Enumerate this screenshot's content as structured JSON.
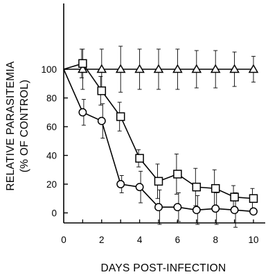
{
  "chart_data": {
    "type": "line",
    "xlabel": "DAYS POST-INFECTION",
    "ylabel_lines": [
      "RELATIVE PARASITEMIA",
      "(% OF CONTROL)"
    ],
    "xlim": [
      0,
      10.5
    ],
    "ylim": [
      -5,
      115
    ],
    "x_ticks": [
      0,
      2,
      4,
      6,
      8,
      10
    ],
    "y_ticks": [
      0,
      20,
      40,
      60,
      80,
      100
    ],
    "grid": false,
    "series": [
      {
        "marker": "triangle",
        "x": [
          0,
          1,
          2,
          3,
          4,
          5,
          6,
          7,
          8,
          9,
          10
        ],
        "y": [
          100,
          100,
          100,
          100,
          100,
          100,
          100,
          100,
          100,
          100,
          100
        ],
        "err_up": [
          0,
          14,
          14,
          16,
          14,
          14,
          14,
          13,
          13,
          12,
          9
        ],
        "err_down": [
          0,
          14,
          14,
          16,
          14,
          14,
          14,
          13,
          13,
          12,
          9
        ]
      },
      {
        "marker": "square",
        "x": [
          0,
          1,
          2,
          3,
          4,
          5,
          6,
          7,
          8,
          9,
          10
        ],
        "y": [
          100,
          104,
          85,
          67,
          38,
          22,
          27,
          18,
          17,
          11,
          10
        ],
        "err_up": [
          0,
          10,
          10,
          10,
          6,
          12,
          14,
          13,
          13,
          8,
          7
        ],
        "err_down": [
          0,
          10,
          10,
          10,
          6,
          12,
          14,
          13,
          13,
          8,
          7
        ]
      },
      {
        "marker": "circle",
        "x": [
          0,
          1,
          2,
          3,
          4,
          5,
          6,
          7,
          8,
          9,
          10
        ],
        "y": [
          100,
          70,
          64,
          20,
          18,
          4,
          4,
          2,
          3,
          2,
          1
        ],
        "err_up": [
          0,
          9,
          12,
          6,
          11,
          12,
          10,
          10,
          11,
          12,
          0
        ],
        "err_down": [
          0,
          9,
          12,
          6,
          11,
          12,
          10,
          10,
          11,
          12,
          0
        ]
      }
    ]
  }
}
